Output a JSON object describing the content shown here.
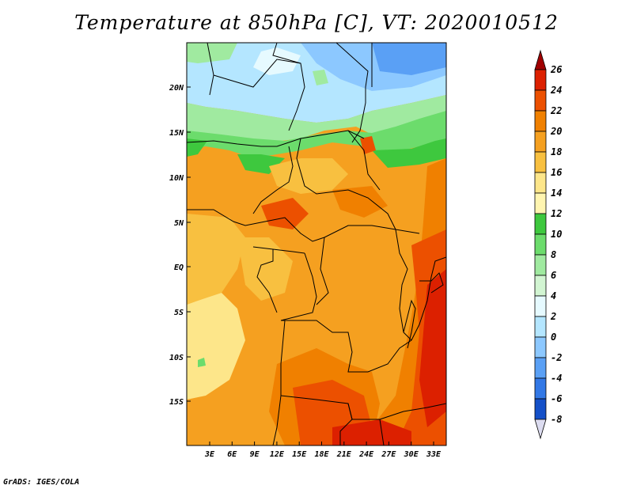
{
  "title": "Temperature at 850hPa [C], VT: 2020010512",
  "credit": "GrADS: IGES/COLA",
  "map": {
    "lat_labels": [
      "20N",
      "15N",
      "10N",
      "5N",
      "EQ",
      "5S",
      "10S",
      "15S"
    ],
    "lon_labels": [
      "3E",
      "6E",
      "9E",
      "12E",
      "15E",
      "18E",
      "21E",
      "24E",
      "27E",
      "30E",
      "33E"
    ]
  },
  "colorbar": {
    "labels": [
      "26",
      "24",
      "22",
      "20",
      "18",
      "16",
      "14",
      "12",
      "10",
      "8",
      "6",
      "4",
      "2",
      "0",
      "-2",
      "-4",
      "-6",
      "-8"
    ],
    "colors": [
      "#a00000",
      "#dc2000",
      "#ec5000",
      "#f08000",
      "#f5a020",
      "#f8c040",
      "#fde68a",
      "#fff5b0",
      "#3ec83e",
      "#6cdc6c",
      "#a0eaa0",
      "#d2f5d2",
      "#e6faff",
      "#b4e6ff",
      "#8cc8ff",
      "#5aa0f5",
      "#3278e6",
      "#1450c8",
      "#0a2896",
      "#000064"
    ],
    "extend_low_color": "#dcdcf0"
  }
}
